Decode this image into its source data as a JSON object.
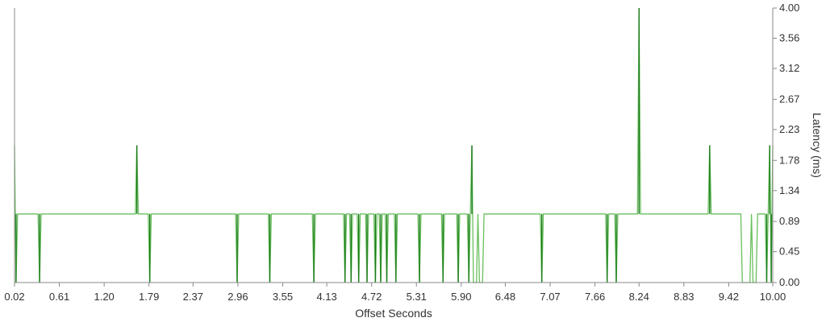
{
  "chart_data": {
    "type": "line",
    "xlabel": "Offset Seconds",
    "ylabel": "Latency (ms)",
    "xlim": [
      0.02,
      10.0
    ],
    "ylim": [
      0.0,
      4.0
    ],
    "x_ticks": [
      "0.02",
      "0.61",
      "1.20",
      "1.79",
      "2.37",
      "2.96",
      "3.55",
      "4.13",
      "4.72",
      "5.31",
      "5.90",
      "6.48",
      "7.07",
      "7.66",
      "8.24",
      "8.83",
      "9.42",
      "10.00"
    ],
    "y_ticks": [
      "0.00",
      "0.45",
      "0.89",
      "1.34",
      "1.78",
      "2.23",
      "2.67",
      "3.12",
      "3.56",
      "4.00"
    ],
    "grid": false,
    "legend": "none",
    "colors": {
      "line": "#6abf5e",
      "spike": "#1a7a1a",
      "axis": "#888888"
    },
    "series": [
      {
        "values": [
          [
            0.02,
            2.0
          ],
          [
            0.04,
            0.0
          ],
          [
            0.06,
            1.0
          ],
          [
            0.33,
            1.0
          ],
          [
            0.35,
            0.0
          ],
          [
            0.37,
            1.0
          ],
          [
            1.61,
            1.0
          ],
          [
            1.63,
            2.0
          ],
          [
            1.65,
            1.0
          ],
          [
            1.78,
            1.0
          ],
          [
            1.8,
            0.0
          ],
          [
            1.82,
            1.0
          ],
          [
            2.93,
            1.0
          ],
          [
            2.95,
            0.0
          ],
          [
            2.97,
            1.0
          ],
          [
            3.36,
            1.0
          ],
          [
            3.38,
            0.0
          ],
          [
            3.4,
            1.0
          ],
          [
            3.94,
            1.0
          ],
          [
            3.96,
            0.0
          ],
          [
            3.98,
            1.0
          ],
          [
            4.35,
            1.0
          ],
          [
            4.37,
            0.0
          ],
          [
            4.39,
            1.0
          ],
          [
            4.43,
            1.0
          ],
          [
            4.45,
            0.0
          ],
          [
            4.47,
            1.0
          ],
          [
            4.53,
            1.0
          ],
          [
            4.55,
            0.0
          ],
          [
            4.57,
            1.0
          ],
          [
            4.64,
            1.0
          ],
          [
            4.66,
            0.0
          ],
          [
            4.68,
            1.0
          ],
          [
            4.75,
            1.0
          ],
          [
            4.77,
            0.0
          ],
          [
            4.79,
            1.0
          ],
          [
            4.82,
            1.0
          ],
          [
            4.84,
            0.0
          ],
          [
            4.86,
            1.0
          ],
          [
            4.9,
            1.0
          ],
          [
            4.92,
            0.0
          ],
          [
            4.94,
            1.0
          ],
          [
            5.02,
            1.0
          ],
          [
            5.04,
            0.0
          ],
          [
            5.06,
            1.0
          ],
          [
            5.33,
            1.0
          ],
          [
            5.35,
            0.0
          ],
          [
            5.37,
            1.0
          ],
          [
            5.64,
            1.0
          ],
          [
            5.66,
            0.0
          ],
          [
            5.68,
            1.0
          ],
          [
            5.84,
            1.0
          ],
          [
            5.86,
            0.0
          ],
          [
            5.88,
            1.0
          ],
          [
            5.98,
            1.0
          ],
          [
            6.0,
            0.0
          ],
          [
            6.02,
            1.0
          ],
          [
            6.04,
            2.0
          ],
          [
            6.06,
            0.0
          ],
          [
            6.1,
            0.0
          ],
          [
            6.12,
            1.0
          ],
          [
            6.14,
            0.0
          ],
          [
            6.18,
            0.0
          ],
          [
            6.2,
            1.0
          ],
          [
            6.94,
            1.0
          ],
          [
            6.96,
            0.0
          ],
          [
            6.98,
            1.0
          ],
          [
            7.8,
            1.0
          ],
          [
            7.82,
            0.0
          ],
          [
            7.84,
            1.0
          ],
          [
            7.92,
            1.0
          ],
          [
            7.94,
            0.0
          ],
          [
            7.96,
            1.0
          ],
          [
            8.22,
            1.0
          ],
          [
            8.24,
            4.0
          ],
          [
            8.26,
            1.0
          ],
          [
            9.15,
            1.0
          ],
          [
            9.17,
            2.0
          ],
          [
            9.19,
            1.0
          ],
          [
            9.58,
            1.0
          ],
          [
            9.6,
            0.0
          ],
          [
            9.7,
            0.0
          ],
          [
            9.72,
            1.0
          ],
          [
            9.74,
            0.0
          ],
          [
            9.78,
            0.0
          ],
          [
            9.8,
            1.0
          ],
          [
            9.9,
            1.0
          ],
          [
            9.92,
            0.0
          ],
          [
            9.94,
            1.0
          ],
          [
            9.96,
            2.0
          ],
          [
            9.98,
            0.0
          ],
          [
            10.0,
            2.0
          ]
        ]
      }
    ]
  }
}
